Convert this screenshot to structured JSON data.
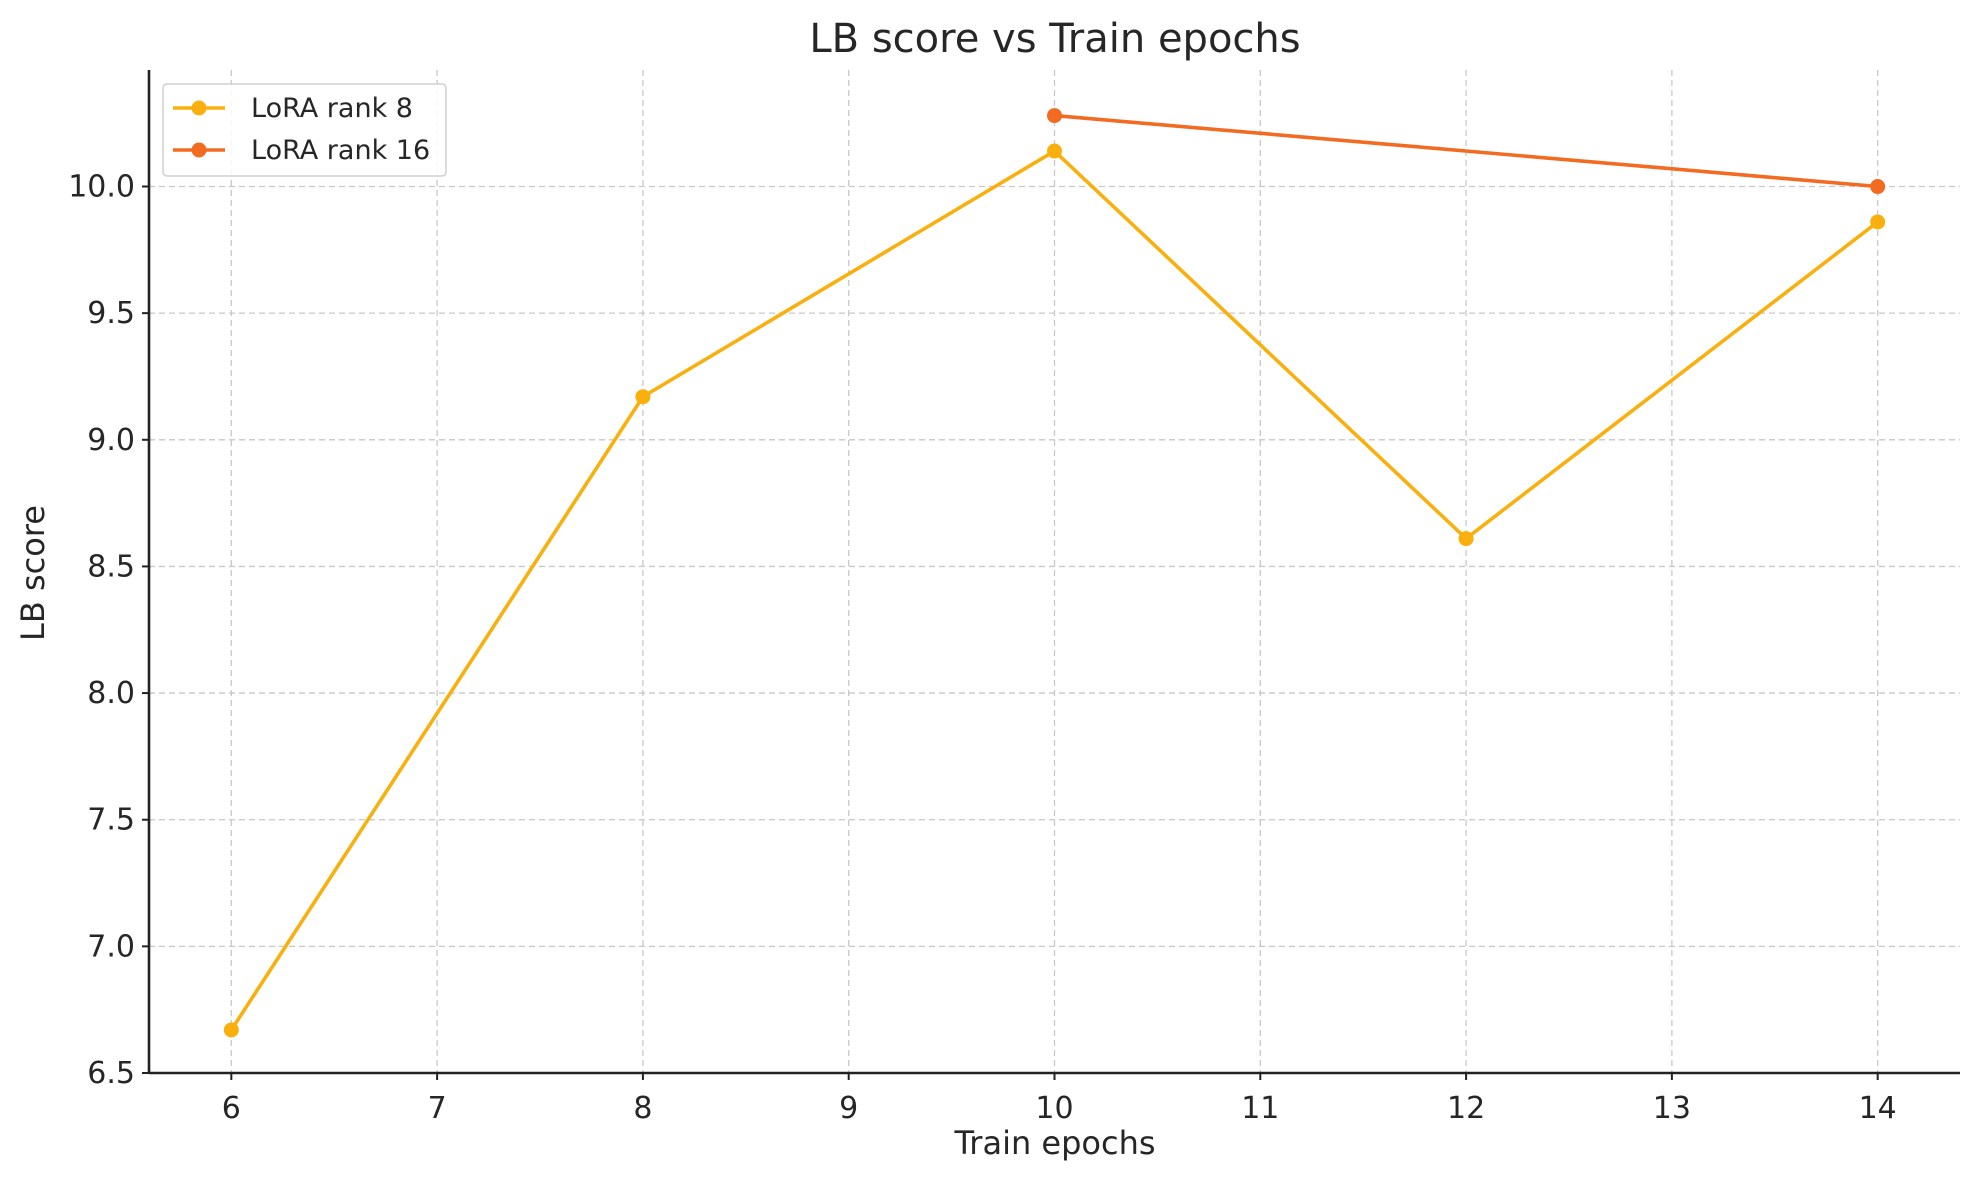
{
  "chart_data": {
    "type": "line",
    "title": "LB score vs Train epochs",
    "xlabel": "Train epochs",
    "ylabel": "LB score",
    "xlim": [
      5.6,
      14.4
    ],
    "ylim": [
      6.5,
      10.46
    ],
    "xticks": [
      6,
      7,
      8,
      9,
      10,
      11,
      12,
      13,
      14
    ],
    "xtick_labels": [
      "6",
      "7",
      "8",
      "9",
      "10",
      "11",
      "12",
      "13",
      "14"
    ],
    "yticks": [
      6.5,
      7.0,
      7.5,
      8.0,
      8.5,
      9.0,
      9.5,
      10.0
    ],
    "ytick_labels": [
      "6.5",
      "7.0",
      "7.5",
      "8.0",
      "8.5",
      "9.0",
      "9.5",
      "10.0"
    ],
    "grid": true,
    "legend_position": "top-left",
    "series": [
      {
        "name": "LoRA rank 8",
        "color": "#f9b00f",
        "x": [
          6,
          8,
          10,
          12,
          14
        ],
        "y": [
          6.67,
          9.17,
          10.14,
          8.61,
          9.86
        ]
      },
      {
        "name": "LoRA rank 16",
        "color": "#f26b21",
        "x": [
          10,
          14
        ],
        "y": [
          10.28,
          10.0
        ]
      }
    ]
  }
}
